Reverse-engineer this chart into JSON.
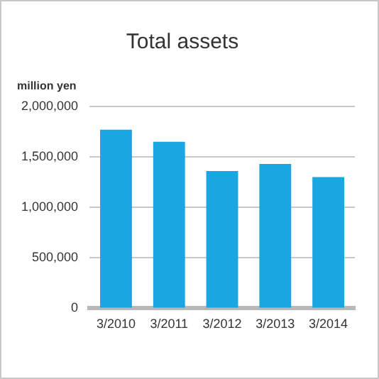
{
  "chart_data": {
    "type": "bar",
    "title": "Total assets",
    "ylabel": "million yen",
    "categories": [
      "3/2010",
      "3/2011",
      "3/2012",
      "3/2013",
      "3/2014"
    ],
    "values": [
      1770000,
      1650000,
      1360000,
      1430000,
      1300000
    ],
    "color": "#1aa7e1",
    "ylim": [
      0,
      2000000
    ],
    "yticks": [
      0,
      {
        "value": 500000,
        "label": "500,000"
      },
      {
        "value": 1000000,
        "label": "1,000,000"
      },
      {
        "value": 1500000,
        "label": "1,500,000"
      },
      {
        "value": 2000000,
        "label": "2,000,000"
      }
    ],
    "grid": "y"
  }
}
